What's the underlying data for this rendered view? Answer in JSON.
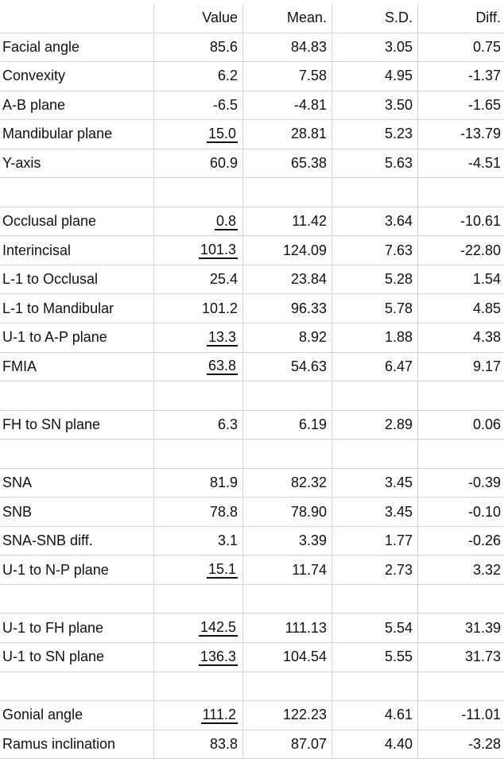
{
  "columns": [
    "Value",
    "Mean.",
    "S.D.",
    "Diff."
  ],
  "rows": [
    {
      "label": "Facial angle",
      "value": "85.6",
      "mean": "84.83",
      "sd": "3.05",
      "diff": "0.75",
      "underlined": false
    },
    {
      "label": "Convexity",
      "value": "6.2",
      "mean": "7.58",
      "sd": "4.95",
      "diff": "-1.37",
      "underlined": false
    },
    {
      "label": "A-B plane",
      "value": "-6.5",
      "mean": "-4.81",
      "sd": "3.50",
      "diff": "-1.65",
      "underlined": false
    },
    {
      "label": "Mandibular plane",
      "value": "15.0",
      "mean": "28.81",
      "sd": "5.23",
      "diff": "-13.79",
      "underlined": true
    },
    {
      "label": "Y-axis",
      "value": "60.9",
      "mean": "65.38",
      "sd": "5.63",
      "diff": "-4.51",
      "underlined": false
    },
    {
      "spacer": true
    },
    {
      "label": "Occlusal plane",
      "value": "0.8",
      "mean": "11.42",
      "sd": "3.64",
      "diff": "-10.61",
      "underlined": true
    },
    {
      "label": "Interincisal",
      "value": "101.3",
      "mean": "124.09",
      "sd": "7.63",
      "diff": "-22.80",
      "underlined": true
    },
    {
      "label": "L-1 to Occlusal",
      "value": "25.4",
      "mean": "23.84",
      "sd": "5.28",
      "diff": "1.54",
      "underlined": false
    },
    {
      "label": "L-1 to Mandibular",
      "value": "101.2",
      "mean": "96.33",
      "sd": "5.78",
      "diff": "4.85",
      "underlined": false
    },
    {
      "label": "U-1 to A-P plane",
      "value": "13.3",
      "mean": "8.92",
      "sd": "1.88",
      "diff": "4.38",
      "underlined": true
    },
    {
      "label": "FMIA",
      "value": "63.8",
      "mean": "54.63",
      "sd": "6.47",
      "diff": "9.17",
      "underlined": true
    },
    {
      "spacer": true
    },
    {
      "label": "FH to SN plane",
      "value": "6.3",
      "mean": "6.19",
      "sd": "2.89",
      "diff": "0.06",
      "underlined": false
    },
    {
      "spacer": true
    },
    {
      "label": "SNA",
      "value": "81.9",
      "mean": "82.32",
      "sd": "3.45",
      "diff": "-0.39",
      "underlined": false
    },
    {
      "label": "SNB",
      "value": "78.8",
      "mean": "78.90",
      "sd": "3.45",
      "diff": "-0.10",
      "underlined": false
    },
    {
      "label": "SNA-SNB diff.",
      "value": "3.1",
      "mean": "3.39",
      "sd": "1.77",
      "diff": "-0.26",
      "underlined": false
    },
    {
      "label": "U-1 to N-P plane",
      "value": "15.1",
      "mean": "11.74",
      "sd": "2.73",
      "diff": "3.32",
      "underlined": true
    },
    {
      "spacer": true
    },
    {
      "label": "U-1 to FH plane",
      "value": "142.5",
      "mean": "111.13",
      "sd": "5.54",
      "diff": "31.39",
      "underlined": true
    },
    {
      "label": "U-1 to SN plane",
      "value": "136.3",
      "mean": "104.54",
      "sd": "5.55",
      "diff": "31.73",
      "underlined": true
    },
    {
      "spacer": true
    },
    {
      "label": "Gonial angle",
      "value": "111.2",
      "mean": "122.23",
      "sd": "4.61",
      "diff": "-11.01",
      "underlined": true
    },
    {
      "label": "Ramus inclination",
      "value": "83.8",
      "mean": "87.07",
      "sd": "4.40",
      "diff": "-3.28",
      "underlined": false
    }
  ]
}
